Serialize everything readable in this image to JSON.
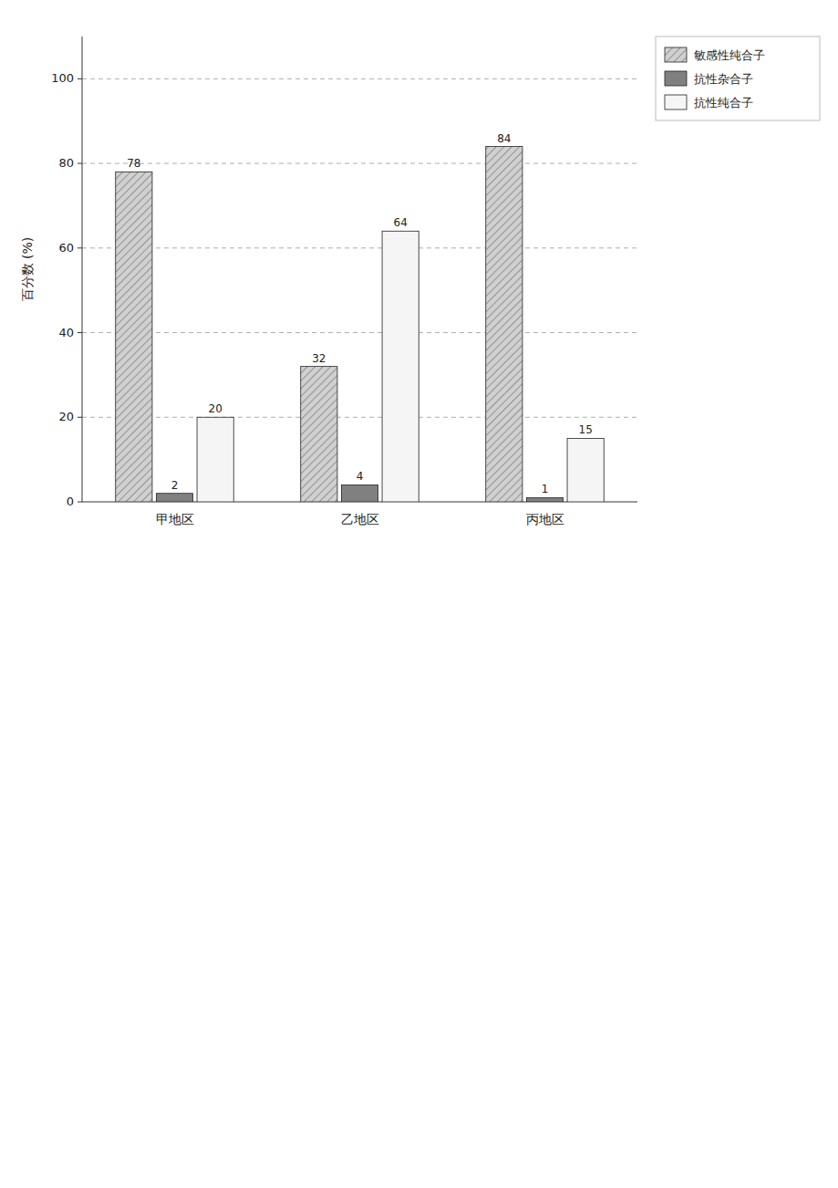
{
  "chart_data": {
    "type": "bar",
    "ylabel": "百分数 (%)",
    "categories": [
      "甲地区",
      "乙地区",
      "丙地区"
    ],
    "series": [
      {
        "name": "敏感性纯合子",
        "color": "#d0d0d0",
        "values": [
          78,
          32,
          84
        ]
      },
      {
        "name": "抗性杂合子",
        "color": "#808080",
        "values": [
          2,
          4,
          1
        ]
      },
      {
        "name": "抗性纯合子",
        "color": "#f5f5f5",
        "values": [
          20,
          64,
          15
        ]
      }
    ],
    "ylim": [
      0,
      110
    ],
    "yticks": [
      0,
      20,
      40,
      60,
      80,
      100
    ],
    "grid": true,
    "legend": "upper right",
    "data_labels": true
  }
}
